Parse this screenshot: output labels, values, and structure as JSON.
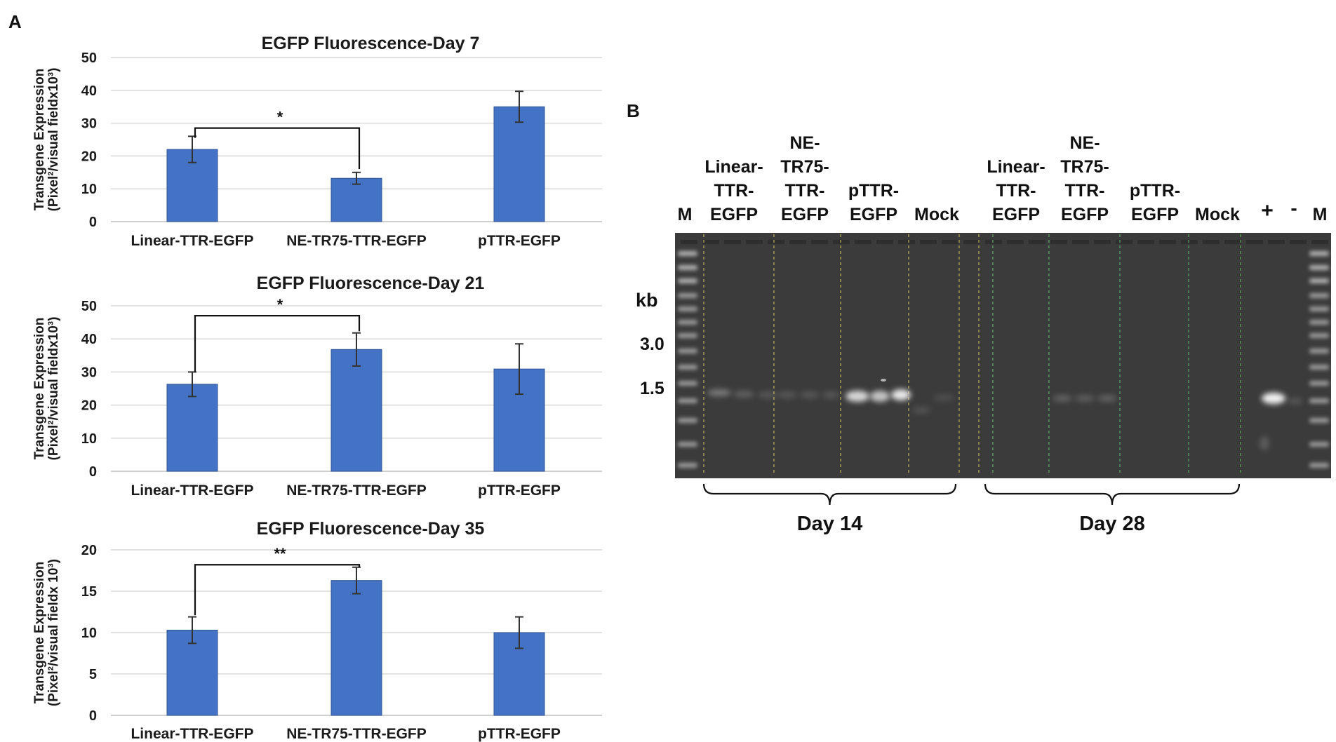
{
  "panel_labels": {
    "a": "A",
    "b": "B"
  },
  "colors": {
    "bar": "#4472c4",
    "bar_edge": "#2f5597",
    "grid": "#d9d9d9",
    "gel_bg": "#3b3b3b",
    "lane_divider": "#c9c35a"
  },
  "chart_data": [
    {
      "type": "bar",
      "title": "EGFP Fluorescence-Day 7",
      "ylabel_line1": "Transgene Expression",
      "ylabel_line2": "(Pixel²/visual fieldx10³)",
      "categories": [
        "Linear-TTR-EGFP",
        "NE-TR75-TTR-EGFP",
        "pTTR-EGFP"
      ],
      "values": [
        22,
        13.2,
        35
      ],
      "errors": [
        4,
        1.8,
        4.7
      ],
      "ylim": [
        0,
        50
      ],
      "yticks": [
        "0",
        "10",
        "20",
        "30",
        "40",
        "50"
      ],
      "grid": true,
      "significance": {
        "from": 0,
        "to": 1,
        "label": "*"
      }
    },
    {
      "type": "bar",
      "title": "EGFP Fluorescence-Day 21",
      "ylabel_line1": "Transgene Expression",
      "ylabel_line2": "(Pixel²/visual fieldx10³)",
      "categories": [
        "Linear-TTR-EGFP",
        "NE-TR75-TTR-EGFP",
        "pTTR-EGFP"
      ],
      "values": [
        26.3,
        36.8,
        30.9
      ],
      "errors": [
        3.7,
        5,
        7.6
      ],
      "ylim": [
        0,
        50
      ],
      "yticks": [
        "0",
        "10",
        "20",
        "30",
        "40",
        "50"
      ],
      "grid": true,
      "significance": {
        "from": 0,
        "to": 1,
        "label": "*"
      }
    },
    {
      "type": "bar",
      "title": "EGFP Fluorescence-Day 35",
      "ylabel_line1": "Transgene Expression",
      "ylabel_line2": "(Pixel²/visual fieldx 10³)",
      "categories": [
        "Linear-TTR-EGFP",
        "NE-TR75-TTR-EGFP",
        "pTTR-EGFP"
      ],
      "values": [
        10.3,
        16.3,
        10
      ],
      "errors": [
        1.6,
        1.6,
        1.9
      ],
      "ylim": [
        0,
        20
      ],
      "yticks": [
        "0",
        "5",
        "10",
        "15",
        "20"
      ],
      "grid": true,
      "significance": {
        "from": 0,
        "to": 1,
        "label": "**"
      }
    }
  ],
  "gel": {
    "lane_headers_day14": [
      {
        "lines": [
          "Linear-",
          "TTR-",
          "EGFP"
        ]
      },
      {
        "lines": [
          "NE-",
          "TR75-",
          "TTR-",
          "EGFP"
        ]
      },
      {
        "lines": [
          "pTTR-",
          "EGFP"
        ]
      },
      {
        "lines": [
          "Mock"
        ]
      }
    ],
    "lane_headers_day28": [
      {
        "lines": [
          "Linear-",
          "TTR-",
          "EGFP"
        ]
      },
      {
        "lines": [
          "NE-",
          "TR75-",
          "TTR-",
          "EGFP"
        ]
      },
      {
        "lines": [
          "pTTR-",
          "EGFP"
        ]
      },
      {
        "lines": [
          "Mock"
        ]
      }
    ],
    "marker_left": "M",
    "marker_right": "M",
    "positive": "+",
    "negative": "-",
    "size_unit": "kb",
    "size_labels": [
      "3.0",
      "1.5"
    ],
    "group_labels": [
      "Day 14",
      "Day 28"
    ]
  }
}
